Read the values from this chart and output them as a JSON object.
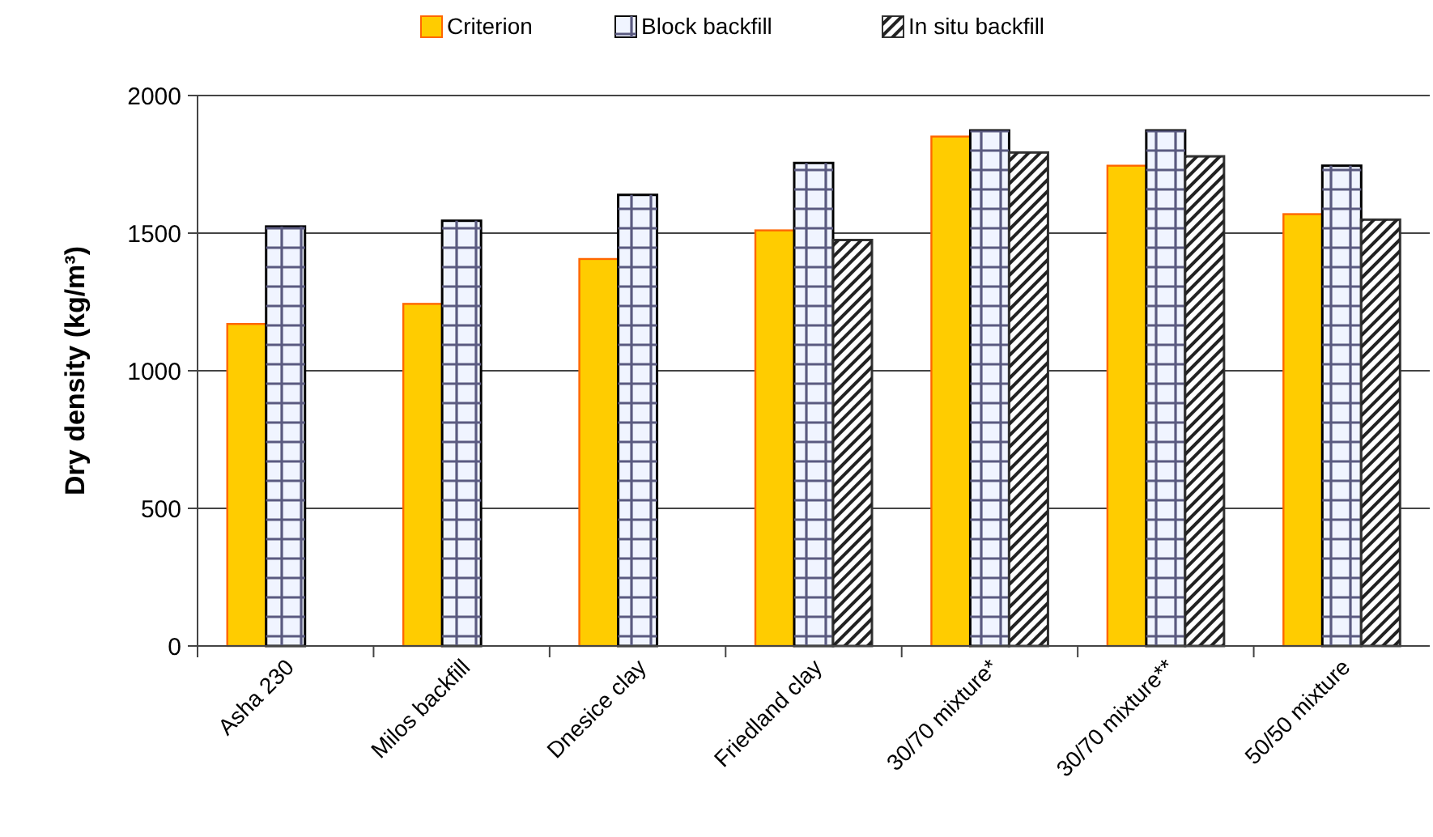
{
  "chart_data": {
    "type": "bar",
    "ylabel": "Dry density (kg/m³)",
    "categories": [
      "Asha 230",
      "Milos backfill",
      "Dnesice clay",
      "Friedland clay",
      "30/70 mixture*",
      "30/70 mixture**",
      "50/50  mixture"
    ],
    "series": [
      {
        "name": "Criterion",
        "color": "#ffcc00",
        "values": [
          1170,
          1243,
          1406,
          1510,
          1851,
          1745,
          1569
        ]
      },
      {
        "name": "Block backfill",
        "color": "#f0f4ff",
        "values": [
          1524,
          1545,
          1639,
          1755,
          1873,
          1873,
          1745
        ]
      },
      {
        "name": "In situ backfill",
        "color": "#ffffff",
        "values": [
          null,
          null,
          null,
          1475,
          1793,
          1779,
          1549
        ]
      }
    ],
    "ylim": [
      0,
      2000
    ],
    "yticks": [
      0,
      500,
      1000,
      1500,
      2000
    ],
    "grid": "y",
    "legend": "top"
  }
}
